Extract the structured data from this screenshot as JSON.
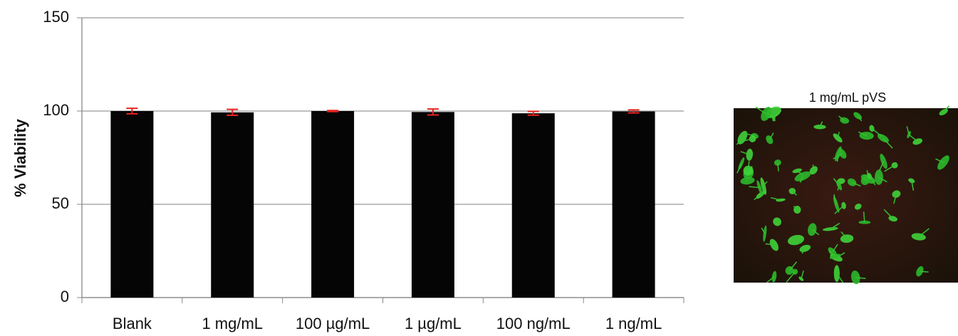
{
  "chart_data": {
    "type": "bar",
    "ylabel": "% Viability",
    "categories": [
      "Blank",
      "1 mg/mL",
      "100 µg/mL",
      "1 µg/mL",
      "100 ng/mL",
      "1 ng/mL"
    ],
    "values": [
      100,
      99.3,
      100,
      99.5,
      98.8,
      99.8
    ],
    "errors": [
      1.5,
      1.6,
      0.3,
      1.6,
      1.0,
      0.8
    ],
    "color": "#050505",
    "error_color": "#e8231f",
    "ylim": [
      0,
      150
    ],
    "yticks": [
      0,
      50,
      100,
      150
    ],
    "grid": true
  },
  "image": {
    "caption": "1 mg/mL pVS"
  }
}
